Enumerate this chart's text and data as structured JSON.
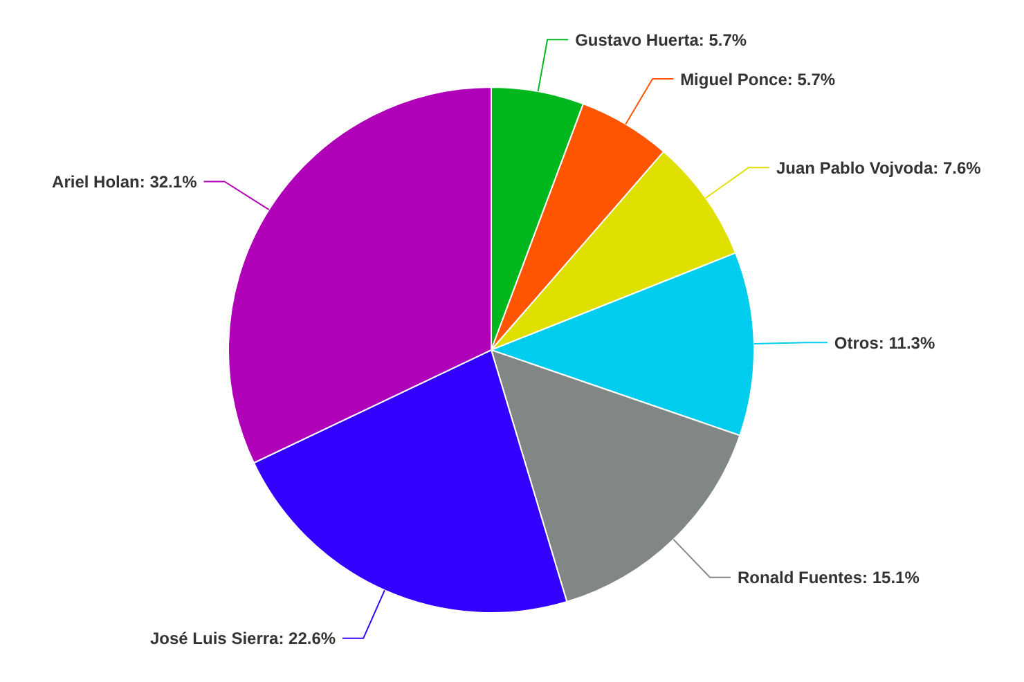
{
  "chart_data": {
    "type": "pie",
    "categories": [
      "Gustavo Huerta",
      "Miguel Ponce",
      "Juan Pablo Vojvoda",
      "Otros",
      "Ronald Fuentes",
      "José Luis Sierra",
      "Ariel Holan"
    ],
    "values": [
      5.7,
      5.7,
      7.6,
      11.3,
      15.1,
      22.6,
      32.1
    ],
    "colors": [
      "#00b81e",
      "#ff5500",
      "#e0e000",
      "#00ccee",
      "#808784",
      "#3300ff",
      "#b000b8"
    ],
    "value_labels": [
      "5.7%",
      "5.7%",
      "7.6%",
      "11.3%",
      "15.1%",
      "22.6%",
      "32.1%"
    ]
  }
}
